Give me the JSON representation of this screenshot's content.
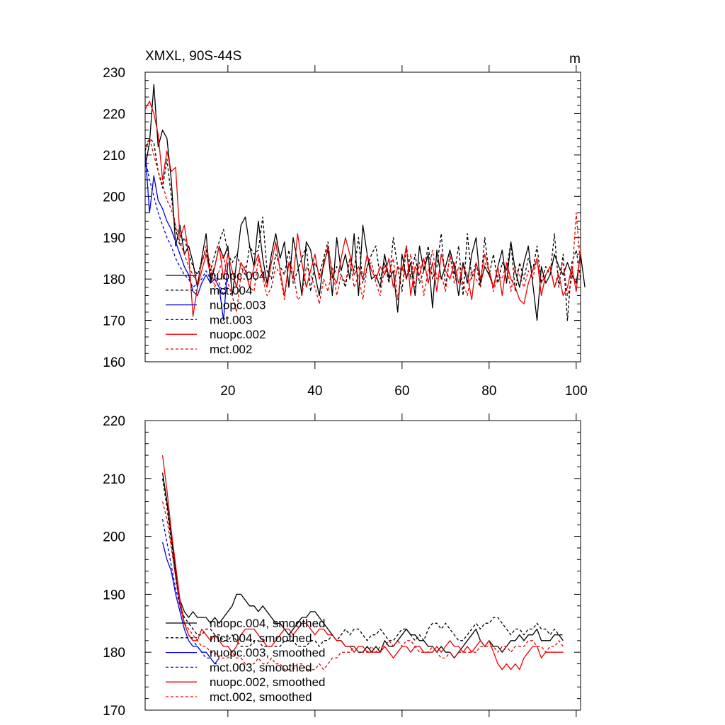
{
  "chart_data": [
    {
      "type": "line",
      "title": "XMXL, 90S-44S",
      "units_label": "m",
      "xlabel": "",
      "ylabel": "",
      "xlim": [
        1,
        101
      ],
      "ylim": [
        160,
        230
      ],
      "yticks": [
        160,
        170,
        180,
        190,
        200,
        210,
        220,
        230
      ],
      "xticks": [
        20,
        40,
        60,
        80,
        100
      ],
      "grid": false,
      "legend_position": "lower-left",
      "series": [
        {
          "name": "nuopc.004",
          "color": "#000000",
          "dash": "solid",
          "x_start": 1,
          "values": [
            207,
            213,
            227,
            212,
            216,
            214,
            204,
            188,
            193,
            186,
            188,
            184,
            178,
            185,
            191,
            179,
            183,
            188,
            185,
            188,
            176,
            184,
            193,
            195,
            188,
            183,
            194,
            185,
            179,
            186,
            191,
            185,
            189,
            178,
            190,
            184,
            176,
            189,
            187,
            181,
            176,
            184,
            187,
            176,
            190,
            182,
            186,
            180,
            191,
            176,
            193,
            186,
            180,
            181,
            178,
            186,
            180,
            182,
            172,
            186,
            180,
            184,
            176,
            188,
            182,
            186,
            173,
            187,
            180,
            183,
            187,
            183,
            176,
            184,
            179,
            186,
            190,
            179,
            183,
            181,
            178,
            183,
            187,
            179,
            189,
            182,
            178,
            184,
            188,
            179,
            170,
            183,
            179,
            181,
            186,
            183,
            181,
            184,
            181,
            179,
            186,
            178
          ]
        },
        {
          "name": "mct.004",
          "color": "#000000",
          "dash": "dashed",
          "x_start": 1,
          "values": [
            211,
            214,
            213,
            206,
            202,
            209,
            200,
            192,
            188,
            190,
            186,
            183,
            181,
            184,
            187,
            182,
            186,
            189,
            192,
            186,
            184,
            186,
            183,
            181,
            188,
            186,
            187,
            195,
            182,
            180,
            186,
            183,
            181,
            187,
            179,
            182,
            185,
            188,
            177,
            184,
            181,
            185,
            189,
            180,
            183,
            181,
            178,
            185,
            182,
            190,
            179,
            183,
            186,
            188,
            180,
            184,
            179,
            190,
            183,
            177,
            188,
            180,
            186,
            179,
            182,
            188,
            180,
            183,
            191,
            178,
            186,
            181,
            188,
            176,
            191,
            180,
            184,
            178,
            190,
            181,
            186,
            179,
            184,
            182,
            189,
            177,
            184,
            180,
            185,
            182,
            188,
            179,
            183,
            181,
            191,
            178,
            186,
            170,
            184,
            187,
            180
          ]
        },
        {
          "name": "nuopc.003",
          "color": "#0000dd",
          "dash": "solid",
          "x_start": 1,
          "values": [
            211,
            196,
            205,
            199,
            197,
            194,
            192,
            189,
            186,
            183,
            181,
            177,
            176,
            179,
            181,
            179,
            180,
            178,
            170,
            184
          ]
        },
        {
          "name": "mct.003",
          "color": "#0000dd",
          "dash": "dashed",
          "x_start": 1,
          "values": [
            209,
            204,
            200,
            196,
            193,
            190,
            188,
            185,
            183,
            181,
            180,
            178,
            179,
            180,
            182,
            180,
            181,
            179,
            176,
            182
          ]
        },
        {
          "name": "nuopc.002",
          "color": "#ee0000",
          "dash": "solid",
          "x_start": 1,
          "values": [
            221,
            223,
            220,
            215,
            204,
            211,
            206,
            207,
            190,
            193,
            186,
            171,
            178,
            182,
            186,
            181,
            183,
            188,
            180,
            186,
            182,
            178,
            184,
            182,
            178,
            183,
            186,
            181,
            178,
            184,
            189,
            182,
            176,
            184,
            180,
            191,
            184,
            178,
            182,
            186,
            180,
            183,
            188,
            181,
            179,
            185,
            190,
            186,
            181,
            183,
            180,
            186,
            182,
            180,
            183,
            181,
            185,
            178,
            183,
            182,
            188,
            176,
            183,
            181,
            185,
            179,
            184,
            177,
            186,
            182,
            180,
            184,
            179,
            183,
            181,
            175,
            184,
            180,
            186,
            182,
            178,
            183,
            176,
            184,
            180,
            178,
            175,
            174,
            179,
            182,
            185,
            176,
            181,
            183,
            178,
            181,
            176,
            178,
            183,
            177,
            187
          ]
        },
        {
          "name": "mct.002",
          "color": "#ee0000",
          "dash": "dashed",
          "x_start": 1,
          "values": [
            212,
            214,
            210,
            206,
            203,
            199,
            197,
            193,
            189,
            186,
            183,
            181,
            179,
            184,
            188,
            183,
            178,
            182,
            186,
            179,
            176,
            172,
            181,
            183,
            178,
            177,
            185,
            180,
            176,
            178,
            183,
            181,
            175,
            184,
            182,
            175,
            176,
            183,
            181,
            178,
            174,
            180,
            177,
            183,
            176,
            181,
            179,
            185,
            178,
            181,
            175,
            183,
            184,
            179,
            176,
            183,
            181,
            185,
            175,
            183,
            180,
            186,
            178,
            184,
            176,
            182,
            187,
            180,
            181,
            177,
            186,
            179,
            183,
            179,
            176,
            182,
            180,
            178,
            184,
            182,
            177,
            181,
            180,
            184,
            177,
            183,
            181,
            178,
            182,
            180,
            185,
            179,
            181,
            183,
            178,
            182,
            184,
            176,
            180,
            196,
            183
          ]
        }
      ]
    },
    {
      "type": "line",
      "title": "",
      "xlabel": "",
      "ylabel": "",
      "xlim": [
        1,
        101
      ],
      "ylim": [
        170,
        220
      ],
      "yticks": [
        170,
        180,
        190,
        200,
        210,
        220
      ],
      "xticks": [
        20,
        40,
        60,
        80,
        100
      ],
      "grid": false,
      "legend_position": "lower-left",
      "series": [
        {
          "name": "nuopc.004, smoothed",
          "color": "#000000",
          "dash": "solid",
          "x_start": 5,
          "values": [
            211,
            206,
            200,
            194,
            189,
            187,
            186,
            187,
            186,
            186,
            186,
            185,
            186,
            185,
            186,
            187,
            188,
            190,
            190,
            189,
            188,
            188,
            187,
            188,
            187,
            186,
            185,
            185,
            184,
            183,
            184,
            185,
            186,
            186,
            187,
            187,
            186,
            185,
            184,
            183,
            182,
            182,
            181,
            181,
            181,
            180,
            180,
            181,
            180,
            181,
            180,
            182,
            181,
            181,
            182,
            183,
            184,
            183,
            183,
            182,
            182,
            181,
            181,
            180,
            181,
            180,
            180,
            179,
            180,
            181,
            182,
            183,
            184,
            182,
            181,
            182,
            181,
            181,
            180,
            181,
            182,
            182,
            183,
            182,
            183,
            183,
            184,
            182,
            182,
            182,
            183,
            183,
            182
          ]
        },
        {
          "name": "mct.004, smoothed",
          "color": "#000000",
          "dash": "dashed",
          "x_start": 5,
          "values": [
            210,
            205,
            199,
            193,
            188,
            186,
            185,
            184,
            183,
            183,
            184,
            184,
            183,
            183,
            182,
            182,
            183,
            182,
            181,
            181,
            181,
            182,
            182,
            181,
            181,
            181,
            181,
            181,
            182,
            182,
            182,
            181,
            181,
            181,
            182,
            182,
            181,
            182,
            182,
            183,
            182,
            183,
            184,
            183,
            184,
            184,
            183,
            182,
            183,
            183,
            184,
            183,
            182,
            182,
            183,
            184,
            184,
            183,
            182,
            183,
            182,
            184,
            185,
            185,
            184,
            185,
            184,
            183,
            182,
            182,
            183,
            184,
            185,
            184,
            185,
            185,
            186,
            186,
            185,
            184,
            183,
            184,
            184,
            183,
            184,
            184,
            185,
            184,
            184,
            183,
            184,
            183,
            183
          ]
        },
        {
          "name": "nuopc.003, smoothed",
          "color": "#0000dd",
          "dash": "solid",
          "x_start": 5,
          "values": [
            199,
            196,
            194,
            190,
            187,
            184,
            182,
            181,
            181,
            180,
            180,
            179,
            178,
            179
          ]
        },
        {
          "name": "mct.003, smoothed",
          "color": "#0000dd",
          "dash": "dashed",
          "x_start": 5,
          "values": [
            203,
            199,
            195,
            191,
            188,
            185,
            183,
            182,
            181,
            180,
            179,
            179,
            178,
            178
          ]
        },
        {
          "name": "nuopc.002, smoothed",
          "color": "#ee0000",
          "dash": "solid",
          "x_start": 5,
          "values": [
            214,
            208,
            201,
            195,
            189,
            185,
            183,
            182,
            182,
            184,
            183,
            182,
            183,
            182,
            181,
            181,
            180,
            181,
            183,
            184,
            184,
            184,
            183,
            182,
            181,
            181,
            182,
            183,
            184,
            184,
            183,
            184,
            185,
            185,
            184,
            183,
            184,
            184,
            183,
            183,
            182,
            182,
            181,
            181,
            180,
            181,
            181,
            180,
            180,
            180,
            180,
            181,
            180,
            179,
            180,
            181,
            181,
            180,
            181,
            181,
            180,
            180,
            180,
            181,
            180,
            181,
            182,
            181,
            181,
            180,
            181,
            180,
            181,
            182,
            181,
            182,
            180,
            178,
            177,
            178,
            177,
            178,
            177,
            179,
            180,
            181,
            181,
            179,
            180,
            180,
            180,
            180,
            180
          ]
        },
        {
          "name": "mct.002, smoothed",
          "color": "#ee0000",
          "dash": "dashed",
          "x_start": 5,
          "values": [
            206,
            203,
            198,
            193,
            188,
            185,
            184,
            183,
            182,
            181,
            181,
            180,
            180,
            179,
            179,
            179,
            180,
            179,
            179,
            178,
            178,
            178,
            179,
            178,
            178,
            179,
            178,
            178,
            177,
            177,
            177,
            178,
            178,
            177,
            177,
            177,
            178,
            177,
            178,
            179,
            179,
            180,
            180,
            180,
            181,
            180,
            180,
            180,
            181,
            180,
            181,
            181,
            182,
            181,
            182,
            181,
            182,
            182,
            181,
            180,
            180,
            180,
            181,
            180,
            179,
            179,
            180,
            179,
            180,
            180,
            180,
            180,
            180,
            181,
            181,
            181,
            181,
            180,
            181,
            181,
            180,
            181,
            181,
            181,
            182,
            182,
            181,
            181,
            180,
            181,
            181,
            182,
            181
          ]
        }
      ]
    }
  ]
}
